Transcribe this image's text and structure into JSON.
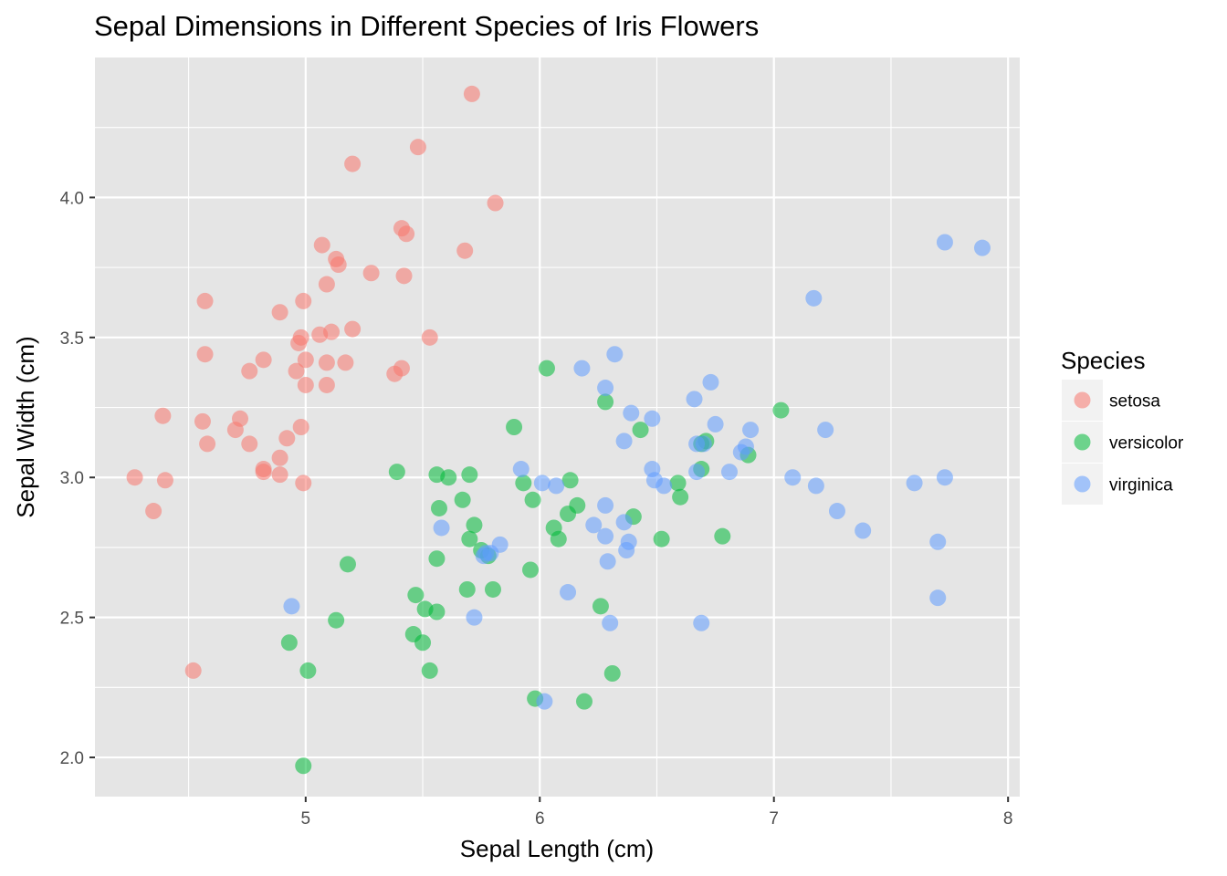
{
  "chart_data": {
    "type": "scatter",
    "title": "Sepal Dimensions in Different Species of Iris Flowers",
    "xlabel": "Sepal Length (cm)",
    "ylabel": "Sepal Width (cm)",
    "xlim": [
      4.1,
      8.05
    ],
    "ylim": [
      1.86,
      4.5
    ],
    "x_ticks": [
      5,
      6,
      7,
      8
    ],
    "x_tick_labels": [
      "5",
      "6",
      "7",
      "8"
    ],
    "y_ticks": [
      2.0,
      2.5,
      3.0,
      3.5,
      4.0
    ],
    "y_tick_labels": [
      "2.0",
      "2.5",
      "3.0",
      "3.5",
      "4.0"
    ],
    "grid": true,
    "background": "#e5e5e5",
    "legend": {
      "title": "Species",
      "position": "right"
    },
    "series": [
      {
        "name": "setosa",
        "color": "#f8766d",
        "points": [
          [
            5.71,
            4.37
          ],
          [
            5.48,
            4.18
          ],
          [
            5.2,
            4.12
          ],
          [
            5.81,
            3.98
          ],
          [
            5.41,
            3.89
          ],
          [
            5.43,
            3.87
          ],
          [
            5.07,
            3.83
          ],
          [
            5.68,
            3.81
          ],
          [
            5.13,
            3.78
          ],
          [
            5.14,
            3.76
          ],
          [
            5.28,
            3.73
          ],
          [
            5.42,
            3.72
          ],
          [
            5.09,
            3.69
          ],
          [
            4.57,
            3.63
          ],
          [
            4.99,
            3.63
          ],
          [
            4.89,
            3.59
          ],
          [
            5.2,
            3.53
          ],
          [
            5.11,
            3.52
          ],
          [
            5.06,
            3.51
          ],
          [
            5.53,
            3.5
          ],
          [
            4.98,
            3.5
          ],
          [
            4.97,
            3.48
          ],
          [
            4.57,
            3.44
          ],
          [
            4.82,
            3.42
          ],
          [
            5.0,
            3.42
          ],
          [
            5.09,
            3.41
          ],
          [
            5.17,
            3.41
          ],
          [
            5.41,
            3.39
          ],
          [
            4.76,
            3.38
          ],
          [
            4.96,
            3.38
          ],
          [
            5.38,
            3.37
          ],
          [
            5.0,
            3.33
          ],
          [
            5.09,
            3.33
          ],
          [
            4.39,
            3.22
          ],
          [
            4.72,
            3.21
          ],
          [
            4.56,
            3.2
          ],
          [
            4.98,
            3.18
          ],
          [
            4.7,
            3.17
          ],
          [
            4.92,
            3.14
          ],
          [
            4.58,
            3.12
          ],
          [
            4.76,
            3.12
          ],
          [
            4.89,
            3.07
          ],
          [
            4.82,
            3.03
          ],
          [
            4.82,
            3.02
          ],
          [
            4.27,
            3.0
          ],
          [
            4.89,
            3.01
          ],
          [
            4.4,
            2.99
          ],
          [
            4.99,
            2.98
          ],
          [
            4.35,
            2.88
          ],
          [
            4.52,
            2.31
          ]
        ]
      },
      {
        "name": "versicolor",
        "color": "#00ba38",
        "points": [
          [
            6.03,
            3.39
          ],
          [
            6.28,
            3.27
          ],
          [
            7.03,
            3.24
          ],
          [
            6.43,
            3.17
          ],
          [
            5.89,
            3.18
          ],
          [
            6.71,
            3.13
          ],
          [
            6.69,
            3.12
          ],
          [
            6.89,
            3.08
          ],
          [
            6.69,
            3.03
          ],
          [
            5.39,
            3.02
          ],
          [
            5.56,
            3.01
          ],
          [
            5.7,
            3.01
          ],
          [
            5.61,
            3.0
          ],
          [
            6.13,
            2.99
          ],
          [
            6.59,
            2.98
          ],
          [
            5.93,
            2.98
          ],
          [
            6.6,
            2.93
          ],
          [
            5.67,
            2.92
          ],
          [
            5.97,
            2.92
          ],
          [
            6.16,
            2.9
          ],
          [
            5.57,
            2.89
          ],
          [
            6.12,
            2.87
          ],
          [
            6.4,
            2.86
          ],
          [
            5.72,
            2.83
          ],
          [
            6.06,
            2.82
          ],
          [
            6.08,
            2.78
          ],
          [
            6.52,
            2.78
          ],
          [
            6.78,
            2.79
          ],
          [
            5.7,
            2.78
          ],
          [
            5.75,
            2.74
          ],
          [
            5.78,
            2.72
          ],
          [
            5.56,
            2.71
          ],
          [
            5.18,
            2.69
          ],
          [
            5.96,
            2.67
          ],
          [
            5.69,
            2.6
          ],
          [
            5.8,
            2.6
          ],
          [
            5.47,
            2.58
          ],
          [
            6.26,
            2.54
          ],
          [
            5.51,
            2.53
          ],
          [
            5.56,
            2.52
          ],
          [
            5.13,
            2.49
          ],
          [
            5.46,
            2.44
          ],
          [
            4.93,
            2.41
          ],
          [
            5.5,
            2.41
          ],
          [
            5.01,
            2.31
          ],
          [
            5.53,
            2.31
          ],
          [
            6.31,
            2.3
          ],
          [
            5.98,
            2.21
          ],
          [
            6.19,
            2.2
          ],
          [
            4.99,
            1.97
          ]
        ]
      },
      {
        "name": "virginica",
        "color": "#619cff",
        "points": [
          [
            7.73,
            3.84
          ],
          [
            7.89,
            3.82
          ],
          [
            7.17,
            3.64
          ],
          [
            6.32,
            3.44
          ],
          [
            6.18,
            3.39
          ],
          [
            6.73,
            3.34
          ],
          [
            6.28,
            3.32
          ],
          [
            6.66,
            3.28
          ],
          [
            6.39,
            3.23
          ],
          [
            6.48,
            3.21
          ],
          [
            6.75,
            3.19
          ],
          [
            6.9,
            3.17
          ],
          [
            7.22,
            3.17
          ],
          [
            6.36,
            3.13
          ],
          [
            6.67,
            3.12
          ],
          [
            6.7,
            3.12
          ],
          [
            6.88,
            3.11
          ],
          [
            6.86,
            3.09
          ],
          [
            6.48,
            3.03
          ],
          [
            5.92,
            3.03
          ],
          [
            6.81,
            3.02
          ],
          [
            6.67,
            3.02
          ],
          [
            7.08,
            3.0
          ],
          [
            7.73,
            3.0
          ],
          [
            6.49,
            2.99
          ],
          [
            6.01,
            2.98
          ],
          [
            6.53,
            2.97
          ],
          [
            6.07,
            2.97
          ],
          [
            7.18,
            2.97
          ],
          [
            7.6,
            2.98
          ],
          [
            6.28,
            2.9
          ],
          [
            7.27,
            2.88
          ],
          [
            6.36,
            2.84
          ],
          [
            6.23,
            2.83
          ],
          [
            5.58,
            2.82
          ],
          [
            7.38,
            2.81
          ],
          [
            6.28,
            2.79
          ],
          [
            6.38,
            2.77
          ],
          [
            5.83,
            2.76
          ],
          [
            7.7,
            2.77
          ],
          [
            6.37,
            2.74
          ],
          [
            5.79,
            2.73
          ],
          [
            5.77,
            2.73
          ],
          [
            5.76,
            2.72
          ],
          [
            6.29,
            2.7
          ],
          [
            6.12,
            2.59
          ],
          [
            7.7,
            2.57
          ],
          [
            4.94,
            2.54
          ],
          [
            5.72,
            2.5
          ],
          [
            6.3,
            2.48
          ],
          [
            6.69,
            2.48
          ],
          [
            6.02,
            2.2
          ]
        ]
      }
    ]
  }
}
